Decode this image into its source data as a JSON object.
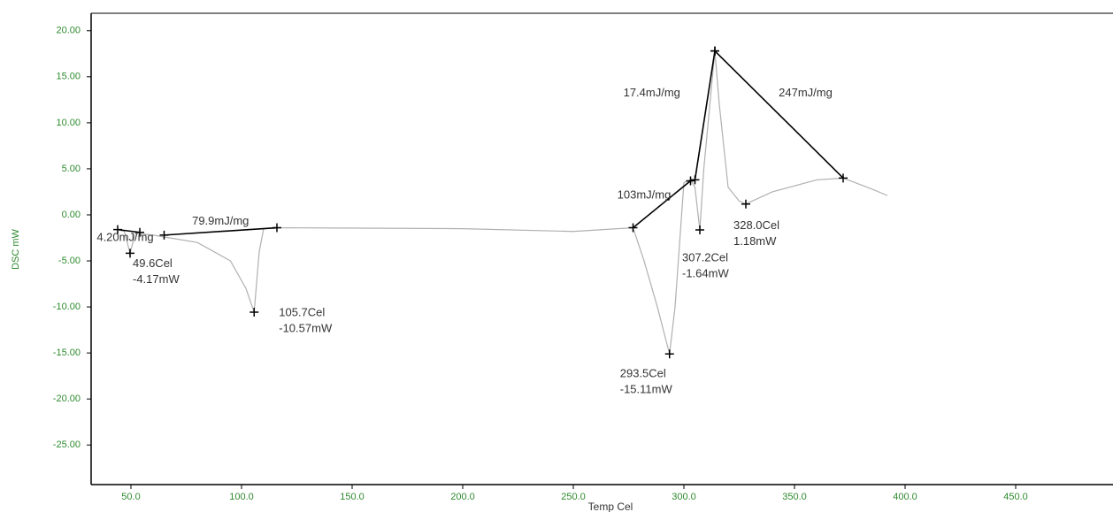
{
  "chart_data": {
    "type": "line",
    "xlabel": "Temp Cel",
    "ylabel": "DSC mW",
    "xlim": [
      32,
      494
    ],
    "ylim": [
      -29.3,
      21.9
    ],
    "xticks": [
      {
        "value": 50,
        "label": "50.0"
      },
      {
        "value": 100,
        "label": "100.0"
      },
      {
        "value": 150,
        "label": "150.0"
      },
      {
        "value": 200,
        "label": "200.0"
      },
      {
        "value": 250,
        "label": "250.0"
      },
      {
        "value": 300,
        "label": "300.0"
      },
      {
        "value": 350,
        "label": "350.0"
      },
      {
        "value": 400,
        "label": "400.0"
      },
      {
        "value": 450,
        "label": "450.0"
      }
    ],
    "yticks": [
      {
        "value": 20,
        "label": "20.00"
      },
      {
        "value": 15,
        "label": "15.00"
      },
      {
        "value": 10,
        "label": "10.00"
      },
      {
        "value": 5,
        "label": "5.00"
      },
      {
        "value": 0,
        "label": "0.00"
      },
      {
        "value": -5,
        "label": "-5.00"
      },
      {
        "value": -10,
        "label": "-10.00"
      },
      {
        "value": -15,
        "label": "-15.00"
      },
      {
        "value": -20,
        "label": "-20.00"
      },
      {
        "value": -25,
        "label": "-25.00"
      }
    ],
    "series": [
      {
        "color": "#b0b0b0",
        "x": [
          44,
          47,
          49.6,
          52,
          60,
          80,
          95,
          102,
          105.7,
          108,
          110,
          120,
          200,
          250,
          277,
          282,
          288,
          293.5,
          296,
          300,
          303,
          305,
          307.2,
          309,
          314,
          316,
          320,
          325,
          328,
          340,
          360,
          372,
          385,
          392
        ],
        "values": [
          -1.6,
          -1.8,
          -4.17,
          -2.0,
          -2.2,
          -3.0,
          -5.0,
          -8.0,
          -10.57,
          -4.0,
          -1.5,
          -1.4,
          -1.5,
          -1.8,
          -1.4,
          -5.0,
          -10.0,
          -15.11,
          -10.0,
          3.5,
          3.8,
          3.0,
          -1.64,
          5.0,
          17.8,
          12.0,
          3.0,
          1.5,
          1.18,
          2.5,
          3.8,
          4.0,
          2.8,
          2.1
        ]
      }
    ],
    "baselines": [
      {
        "label": "4.20mJ/mg",
        "x": [
          44,
          54
        ],
        "values": [
          -1.6,
          -1.9
        ]
      },
      {
        "label": "79.9mJ/mg",
        "x": [
          65,
          116
        ],
        "values": [
          -2.2,
          -1.4
        ]
      },
      {
        "label": "103mJ/mg",
        "x": [
          277,
          303
        ],
        "values": [
          -1.4,
          3.7
        ]
      },
      {
        "label": "17.4mJ/mg",
        "x": [
          305,
          314
        ],
        "values": [
          3.8,
          17.8
        ]
      },
      {
        "label": "247mJ/mg",
        "x": [
          314,
          372
        ],
        "values": [
          17.8,
          4.0
        ]
      }
    ],
    "peaks": [
      {
        "temp_label": "49.6Cel",
        "dsc_label": "-4.17mW",
        "x": 49.6,
        "y": -4.17
      },
      {
        "temp_label": "105.7Cel",
        "dsc_label": "-10.57mW",
        "x": 105.7,
        "y": -10.57
      },
      {
        "temp_label": "293.5Cel",
        "dsc_label": "-15.11mW",
        "x": 293.5,
        "y": -15.11
      },
      {
        "temp_label": "307.2Cel",
        "dsc_label": "-1.64mW",
        "x": 307.2,
        "y": -1.64
      },
      {
        "temp_label": "328.0Cel",
        "dsc_label": "1.18mW",
        "x": 328.0,
        "y": 1.18
      }
    ]
  }
}
